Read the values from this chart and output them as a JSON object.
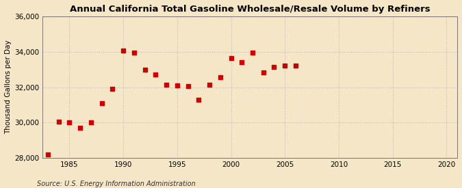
{
  "title": "Annual California Total Gasoline Wholesale/Resale Volume by Refiners",
  "ylabel": "Thousand Gallons per Day",
  "source": "Source: U.S. Energy Information Administration",
  "background_color": "#f5e6c8",
  "marker_color": "#cc0000",
  "marker_size": 18,
  "years": [
    1983,
    1984,
    1985,
    1986,
    1987,
    1988,
    1989,
    1990,
    1991,
    1992,
    1993,
    1994,
    1995,
    1996,
    1997,
    1998,
    1999,
    2000,
    2001,
    2002,
    2003,
    2004,
    2005,
    2006
  ],
  "values": [
    28200,
    30050,
    30000,
    29700,
    30000,
    31100,
    31900,
    34050,
    33950,
    33000,
    32700,
    32150,
    32100,
    32050,
    31300,
    32150,
    32550,
    33650,
    33400,
    33950,
    32850,
    33150,
    33200,
    33200
  ],
  "ylim": [
    28000,
    36000
  ],
  "xlim": [
    1982.5,
    2021
  ],
  "yticks": [
    28000,
    30000,
    32000,
    34000,
    36000
  ],
  "ytick_labels": [
    "28,000",
    "30,000",
    "32,000",
    "34,000",
    "36,000"
  ],
  "xticks": [
    1985,
    1990,
    1995,
    2000,
    2005,
    2010,
    2015,
    2020
  ],
  "grid_color": "#bbbbbb",
  "grid_linestyle": ":",
  "grid_linewidth": 0.8,
  "title_fontsize": 9.5,
  "axis_fontsize": 7.5,
  "source_fontsize": 7
}
